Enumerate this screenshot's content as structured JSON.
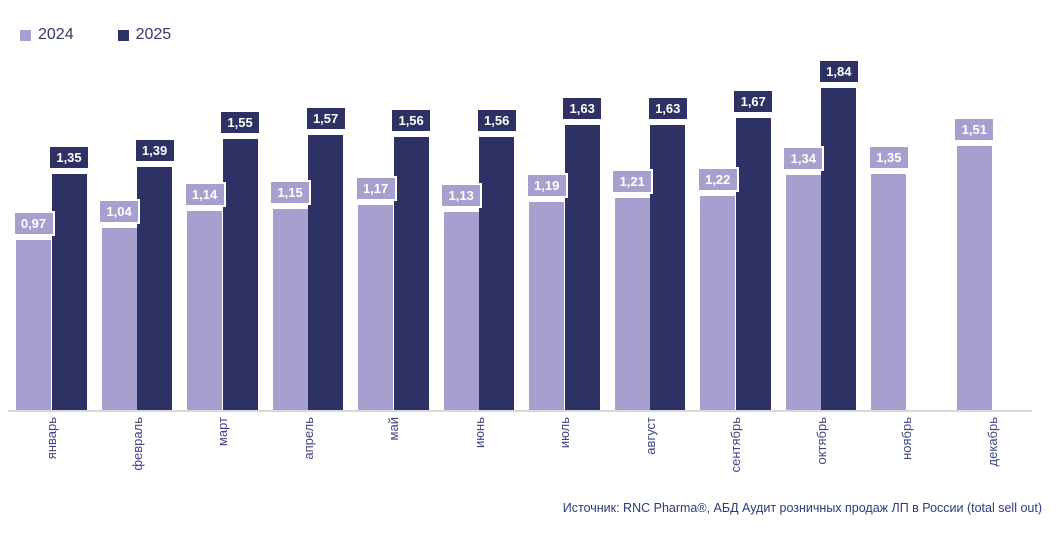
{
  "legend": {
    "items": [
      {
        "label": "2024",
        "color": "#a7a0cf"
      },
      {
        "label": "2025",
        "color": "#2d3163"
      }
    ]
  },
  "source_note": "Источник: RNC Pharma®, АБД Аудит розничных продаж ЛП в России (total sell out)",
  "colors": {
    "series_2024": "#a7a0cf",
    "series_2025": "#2d3163",
    "axis_line": "#d9d9d9",
    "axis_label_text": "#3f4582",
    "legend_text": "#33386b",
    "source_text": "#2d3a7a",
    "value_label_text": "#ffffff"
  },
  "chart_data": {
    "type": "bar",
    "title": "",
    "xlabel": "",
    "ylabel": "",
    "ylim": [
      0,
      2
    ],
    "grid": false,
    "y_axis_ticks_visible": false,
    "legend_position": "top-left",
    "value_label_decimal_separator": ",",
    "categories": [
      "январь",
      "февраль",
      "март",
      "апрель",
      "май",
      "июнь",
      "июль",
      "август",
      "сентябрь",
      "октябрь",
      "ноябрь",
      "декабрь"
    ],
    "series": [
      {
        "name": "2024",
        "color": "#a7a0cf",
        "values": [
          0.97,
          1.04,
          1.14,
          1.15,
          1.17,
          1.13,
          1.19,
          1.21,
          1.22,
          1.34,
          1.35,
          1.51
        ],
        "labels": [
          "0,97",
          "1,04",
          "1,14",
          "1,15",
          "1,17",
          "1,13",
          "1,19",
          "1,21",
          "1,22",
          "1,34",
          "1,35",
          "1,51"
        ]
      },
      {
        "name": "2025",
        "color": "#2d3163",
        "values": [
          1.35,
          1.39,
          1.55,
          1.57,
          1.56,
          1.56,
          1.63,
          1.63,
          1.67,
          1.84,
          null,
          null
        ],
        "labels": [
          "1,35",
          "1,39",
          "1,55",
          "1,57",
          "1,56",
          "1,56",
          "1,63",
          "1,63",
          "1,67",
          "1,84",
          "",
          ""
        ]
      }
    ]
  }
}
